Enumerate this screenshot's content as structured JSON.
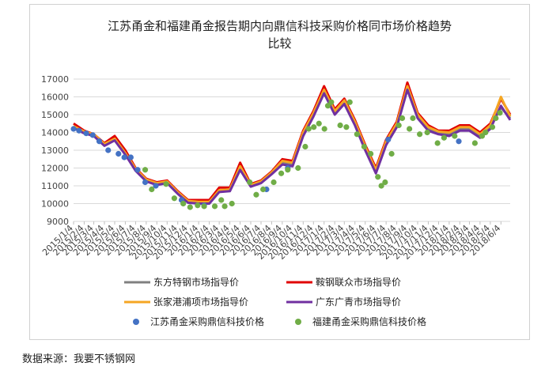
{
  "chart_data": {
    "type": "line",
    "title": "江苏甬金和福建甬金报告期内向鼎信科技采购价格同市场价格趋势",
    "title_line2": "比较",
    "ylim": [
      9000,
      17000
    ],
    "yticks": [
      9000,
      10000,
      11000,
      12000,
      13000,
      14000,
      15000,
      16000,
      17000
    ],
    "xlim": [
      "2015/1/4",
      "2018/7/1"
    ],
    "x_tick_labels": [
      "2015/1/4",
      "2015/2/4",
      "2015/3/4",
      "2015/4/4",
      "2015/5/4",
      "2015/6/4",
      "2015/7/4",
      "2015/8/4",
      "2015/9/4",
      "2015/10/4",
      "2015/11/4",
      "2015/12/4",
      "2016/1/4",
      "2016/2/4",
      "2016/3/4",
      "2016/4/4",
      "2016/5/4",
      "2016/6/4",
      "2016/7/4",
      "2016/8/4",
      "2016/9/4",
      "2016/10/4",
      "2016/11/4",
      "2016/12/4",
      "2017/1/4",
      "2017/2/4",
      "2017/3/4",
      "2017/4/4",
      "2017/5/4",
      "2017/6/4",
      "2017/7/4",
      "2017/8/4",
      "2017/9/4",
      "2017/10/4",
      "2017/11/4",
      "2017/12/4",
      "2018/1/4",
      "2018/2/4",
      "2018/3/4",
      "2018/4/4",
      "2018/5/4",
      "2018/6/4"
    ],
    "grid": "horizontal",
    "legend_position": "bottom",
    "series": [
      {
        "name": "东方特钢市场指导价",
        "color": "#808080",
        "kind": "line",
        "points": [
          [
            "2015/1/4",
            14300
          ],
          [
            "2015/2/4",
            14000
          ],
          [
            "2015/3/4",
            13850
          ],
          [
            "2015/4/4",
            13300
          ],
          [
            "2015/5/4",
            13600
          ],
          [
            "2015/6/4",
            12800
          ],
          [
            "2015/7/4",
            11900
          ],
          [
            "2015/8/4",
            11300
          ],
          [
            "2015/9/4",
            11100
          ],
          [
            "2015/10/4",
            11200
          ],
          [
            "2015/11/4",
            10600
          ],
          [
            "2015/12/4",
            10100
          ],
          [
            "2016/1/4",
            10050
          ],
          [
            "2016/2/4",
            10050
          ],
          [
            "2016/3/4",
            10700
          ],
          [
            "2016/4/4",
            10750
          ],
          [
            "2016/5/4",
            12000
          ],
          [
            "2016/6/4",
            11000
          ],
          [
            "2016/7/4",
            11200
          ],
          [
            "2016/8/4",
            11700
          ],
          [
            "2016/9/4",
            12300
          ],
          [
            "2016/10/4",
            12200
          ],
          [
            "2016/11/4",
            13900
          ],
          [
            "2016/12/4",
            15000
          ],
          [
            "2017/1/4",
            16300
          ],
          [
            "2017/2/4",
            15100
          ],
          [
            "2017/3/4",
            15700
          ],
          [
            "2017/4/4",
            14500
          ],
          [
            "2017/5/4",
            13100
          ],
          [
            "2017/6/4",
            11800
          ],
          [
            "2017/7/4",
            13400
          ],
          [
            "2017/8/4",
            14400
          ],
          [
            "2017/9/4",
            16500
          ],
          [
            "2017/10/4",
            14900
          ],
          [
            "2017/11/4",
            14200
          ],
          [
            "2017/12/4",
            14000
          ],
          [
            "2018/1/4",
            13900
          ],
          [
            "2018/2/4",
            14200
          ],
          [
            "2018/3/4",
            14200
          ],
          [
            "2018/4/4",
            13800
          ],
          [
            "2018/5/4",
            14300
          ],
          [
            "2018/6/4",
            15400
          ],
          [
            "2018/7/1",
            14800
          ]
        ]
      },
      {
        "name": "鞍钢联众市场指导价",
        "color": "#e00000",
        "kind": "line",
        "points": [
          [
            "2015/1/4",
            14500
          ],
          [
            "2015/2/4",
            14100
          ],
          [
            "2015/3/4",
            13900
          ],
          [
            "2015/4/4",
            13400
          ],
          [
            "2015/5/4",
            13800
          ],
          [
            "2015/6/4",
            13000
          ],
          [
            "2015/7/4",
            12000
          ],
          [
            "2015/8/4",
            11400
          ],
          [
            "2015/9/4",
            11200
          ],
          [
            "2015/10/4",
            11300
          ],
          [
            "2015/11/4",
            10700
          ],
          [
            "2015/12/4",
            10200
          ],
          [
            "2016/1/4",
            10200
          ],
          [
            "2016/2/4",
            10200
          ],
          [
            "2016/3/4",
            10900
          ],
          [
            "2016/4/4",
            10900
          ],
          [
            "2016/5/4",
            12300
          ],
          [
            "2016/6/4",
            11100
          ],
          [
            "2016/7/4",
            11300
          ],
          [
            "2016/8/4",
            11800
          ],
          [
            "2016/9/4",
            12500
          ],
          [
            "2016/10/4",
            12400
          ],
          [
            "2016/11/4",
            14100
          ],
          [
            "2016/12/4",
            15200
          ],
          [
            "2017/1/4",
            16600
          ],
          [
            "2017/2/4",
            15300
          ],
          [
            "2017/3/4",
            15900
          ],
          [
            "2017/4/4",
            14700
          ],
          [
            "2017/5/4",
            13300
          ],
          [
            "2017/6/4",
            12000
          ],
          [
            "2017/7/4",
            13600
          ],
          [
            "2017/8/4",
            14600
          ],
          [
            "2017/9/4",
            16800
          ],
          [
            "2017/10/4",
            15100
          ],
          [
            "2017/11/4",
            14400
          ],
          [
            "2017/12/4",
            14100
          ],
          [
            "2018/1/4",
            14100
          ],
          [
            "2018/2/4",
            14400
          ],
          [
            "2018/3/4",
            14400
          ],
          [
            "2018/4/4",
            14000
          ],
          [
            "2018/5/4",
            14500
          ],
          [
            "2018/6/4",
            15900
          ],
          [
            "2018/7/1",
            15000
          ]
        ]
      },
      {
        "name": "张家港浦项市场指导价",
        "color": "#f5a623",
        "kind": "line",
        "points": [
          [
            "2015/1/4",
            14350
          ],
          [
            "2015/2/4",
            14050
          ],
          [
            "2015/3/4",
            13900
          ],
          [
            "2015/4/4",
            13350
          ],
          [
            "2015/5/4",
            13650
          ],
          [
            "2015/6/4",
            12850
          ],
          [
            "2015/7/4",
            11950
          ],
          [
            "2015/8/4",
            11350
          ],
          [
            "2015/9/4",
            11150
          ],
          [
            "2015/10/4",
            11250
          ],
          [
            "2015/11/4",
            10650
          ],
          [
            "2015/12/4",
            10150
          ],
          [
            "2016/1/4",
            10100
          ],
          [
            "2016/2/4",
            10100
          ],
          [
            "2016/3/4",
            10750
          ],
          [
            "2016/4/4",
            10800
          ],
          [
            "2016/5/4",
            12100
          ],
          [
            "2016/6/4",
            11050
          ],
          [
            "2016/7/4",
            11250
          ],
          [
            "2016/8/4",
            11750
          ],
          [
            "2016/9/4",
            12400
          ],
          [
            "2016/10/4",
            12300
          ],
          [
            "2016/11/4",
            14000
          ],
          [
            "2016/12/4",
            15100
          ],
          [
            "2017/1/4",
            16400
          ],
          [
            "2017/2/4",
            15200
          ],
          [
            "2017/3/4",
            15800
          ],
          [
            "2017/4/4",
            14600
          ],
          [
            "2017/5/4",
            13200
          ],
          [
            "2017/6/4",
            11900
          ],
          [
            "2017/7/4",
            13500
          ],
          [
            "2017/8/4",
            14500
          ],
          [
            "2017/9/4",
            16600
          ],
          [
            "2017/10/4",
            15000
          ],
          [
            "2017/11/4",
            14300
          ],
          [
            "2017/12/4",
            14050
          ],
          [
            "2018/1/4",
            14000
          ],
          [
            "2018/2/4",
            14300
          ],
          [
            "2018/3/4",
            14300
          ],
          [
            "2018/4/4",
            13900
          ],
          [
            "2018/5/4",
            14400
          ],
          [
            "2018/6/4",
            16000
          ],
          [
            "2018/7/1",
            14900
          ]
        ]
      },
      {
        "name": "广东广青市场指导价",
        "color": "#7030a0",
        "kind": "line",
        "points": [
          [
            "2015/1/4",
            14250
          ],
          [
            "2015/2/4",
            13950
          ],
          [
            "2015/3/4",
            13800
          ],
          [
            "2015/4/4",
            13250
          ],
          [
            "2015/5/4",
            13550
          ],
          [
            "2015/6/4",
            12750
          ],
          [
            "2015/7/4",
            11850
          ],
          [
            "2015/8/4",
            11250
          ],
          [
            "2015/9/4",
            11050
          ],
          [
            "2015/10/4",
            11150
          ],
          [
            "2015/11/4",
            10550
          ],
          [
            "2015/12/4",
            10050
          ],
          [
            "2016/1/4",
            10000
          ],
          [
            "2016/2/4",
            10000
          ],
          [
            "2016/3/4",
            10650
          ],
          [
            "2016/4/4",
            10700
          ],
          [
            "2016/5/4",
            11900
          ],
          [
            "2016/6/4",
            10950
          ],
          [
            "2016/7/4",
            11150
          ],
          [
            "2016/8/4",
            11650
          ],
          [
            "2016/9/4",
            12200
          ],
          [
            "2016/10/4",
            12100
          ],
          [
            "2016/11/4",
            13800
          ],
          [
            "2016/12/4",
            14900
          ],
          [
            "2017/1/4",
            16200
          ],
          [
            "2017/2/4",
            15000
          ],
          [
            "2017/3/4",
            15600
          ],
          [
            "2017/4/4",
            14400
          ],
          [
            "2017/5/4",
            13000
          ],
          [
            "2017/6/4",
            11700
          ],
          [
            "2017/7/4",
            13300
          ],
          [
            "2017/8/4",
            14300
          ],
          [
            "2017/9/4",
            16400
          ],
          [
            "2017/10/4",
            14800
          ],
          [
            "2017/11/4",
            14100
          ],
          [
            "2017/12/4",
            13900
          ],
          [
            "2018/1/4",
            13800
          ],
          [
            "2018/2/4",
            14100
          ],
          [
            "2018/3/4",
            14100
          ],
          [
            "2018/4/4",
            13700
          ],
          [
            "2018/5/4",
            14200
          ],
          [
            "2018/6/4",
            15500
          ],
          [
            "2018/7/1",
            14700
          ]
        ]
      },
      {
        "name": "江苏甬金采购鼎信科技价格",
        "color": "#4472c4",
        "kind": "scatter",
        "points": [
          [
            "2015/1/4",
            14200
          ],
          [
            "2015/1/20",
            14100
          ],
          [
            "2015/2/10",
            13950
          ],
          [
            "2015/3/1",
            13850
          ],
          [
            "2015/3/20",
            13500
          ],
          [
            "2015/4/15",
            13000
          ],
          [
            "2015/5/15",
            12800
          ],
          [
            "2015/6/1",
            12600
          ],
          [
            "2015/6/20",
            12600
          ],
          [
            "2015/7/10",
            11900
          ],
          [
            "2015/8/1",
            11200
          ],
          [
            "2015/9/1",
            11000
          ],
          [
            "2015/11/15",
            10200
          ],
          [
            "2016/1/20",
            9900
          ],
          [
            "2016/7/20",
            10800
          ],
          [
            "2016/9/20",
            12000
          ],
          [
            "2017/7/10",
            13600
          ],
          [
            "2018/2/1",
            13500
          ]
        ]
      },
      {
        "name": "福建甬金采购鼎信科技价格",
        "color": "#70ad47",
        "kind": "scatter",
        "points": [
          [
            "2015/8/1",
            11900
          ],
          [
            "2015/8/20",
            10800
          ],
          [
            "2015/10/1",
            11100
          ],
          [
            "2015/10/25",
            10300
          ],
          [
            "2015/11/20",
            10000
          ],
          [
            "2015/12/10",
            9800
          ],
          [
            "2016/1/1",
            9900
          ],
          [
            "2016/1/20",
            9850
          ],
          [
            "2016/2/20",
            9850
          ],
          [
            "2016/3/10",
            10200
          ],
          [
            "2016/3/20",
            9850
          ],
          [
            "2016/4/10",
            10000
          ],
          [
            "2016/6/1",
            11200
          ],
          [
            "2016/6/20",
            10500
          ],
          [
            "2016/7/10",
            10800
          ],
          [
            "2016/8/10",
            11200
          ],
          [
            "2016/9/1",
            11700
          ],
          [
            "2016/9/20",
            11900
          ],
          [
            "2016/10/20",
            12000
          ],
          [
            "2016/11/10",
            13200
          ],
          [
            "2016/11/20",
            14200
          ],
          [
            "2016/12/5",
            14300
          ],
          [
            "2016/12/20",
            14500
          ],
          [
            "2017/1/5",
            14200
          ],
          [
            "2017/1/15",
            15500
          ],
          [
            "2017/1/25",
            15700
          ],
          [
            "2017/2/20",
            14400
          ],
          [
            "2017/3/10",
            14300
          ],
          [
            "2017/3/20",
            15700
          ],
          [
            "2017/4/10",
            13900
          ],
          [
            "2017/5/1",
            13200
          ],
          [
            "2017/5/20",
            12800
          ],
          [
            "2017/6/10",
            11500
          ],
          [
            "2017/6/20",
            11000
          ],
          [
            "2017/7/1",
            11200
          ],
          [
            "2017/7/20",
            12800
          ],
          [
            "2017/8/10",
            14400
          ],
          [
            "2017/8/20",
            14800
          ],
          [
            "2017/9/10",
            14200
          ],
          [
            "2017/9/20",
            14800
          ],
          [
            "2017/10/10",
            13900
          ],
          [
            "2017/11/1",
            14000
          ],
          [
            "2017/12/1",
            13400
          ],
          [
            "2017/12/20",
            13700
          ],
          [
            "2018/1/20",
            13800
          ],
          [
            "2018/3/20",
            13400
          ],
          [
            "2018/4/10",
            13800
          ],
          [
            "2018/4/20",
            14000
          ],
          [
            "2018/5/10",
            14300
          ],
          [
            "2018/5/20",
            14800
          ],
          [
            "2018/6/1",
            15100
          ]
        ]
      }
    ]
  },
  "source_note": "数据来源：我要不锈钢网"
}
